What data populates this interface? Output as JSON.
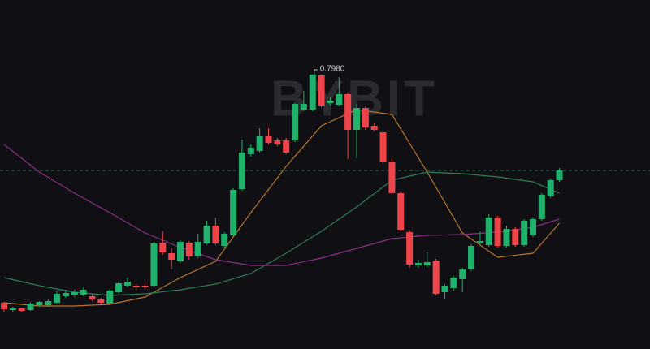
{
  "chart_data": {
    "type": "candlestick",
    "watermark": "BYBIT",
    "annotation": {
      "value": 0.798,
      "label": "0.7980"
    },
    "up_color": "#20b26c",
    "down_color": "#ef454a",
    "open": [
      0.7699,
      0.769,
      0.7692,
      0.769,
      0.7696,
      0.7696,
      0.7699,
      0.7707,
      0.7708,
      0.7709,
      0.7707,
      0.7703,
      0.7698,
      0.7712,
      0.772,
      0.772,
      0.772,
      0.772,
      0.7773,
      0.776,
      0.775,
      0.7773,
      0.7756,
      0.7772,
      0.7794,
      0.7769,
      0.7782,
      0.7839,
      0.7882,
      0.7886,
      0.7904,
      0.7899,
      0.7899,
      0.7899,
      0.7937,
      0.7937,
      0.7979,
      0.7945,
      0.7943,
      0.7956,
      0.7912,
      0.7939,
      0.7917,
      0.7909,
      0.7872,
      0.7834,
      0.7786,
      0.7745,
      0.7745,
      0.7751,
      0.7712,
      0.7717,
      0.7728,
      0.774,
      0.7772,
      0.777,
      0.7804,
      0.7769,
      0.779,
      0.777,
      0.7782,
      0.7802,
      0.783,
      0.785
    ],
    "high": [
      0.77,
      0.7694,
      0.7693,
      0.77,
      0.7701,
      0.7703,
      0.7713,
      0.7715,
      0.7715,
      0.7718,
      0.771,
      0.7705,
      0.7716,
      0.7725,
      0.773,
      0.7722,
      0.7723,
      0.7774,
      0.7787,
      0.7766,
      0.7776,
      0.7775,
      0.7784,
      0.78,
      0.7804,
      0.7786,
      0.784,
      0.79,
      0.7894,
      0.7914,
      0.7914,
      0.7902,
      0.7902,
      0.7946,
      0.796,
      0.798,
      0.798,
      0.7952,
      0.7977,
      0.7958,
      0.7944,
      0.7942,
      0.792,
      0.7912,
      0.7877,
      0.7836,
      0.7788,
      0.7752,
      0.7761,
      0.7753,
      0.7722,
      0.7732,
      0.7742,
      0.7771,
      0.7787,
      0.7808,
      0.7806,
      0.7794,
      0.7792,
      0.7802,
      0.7804,
      0.7834,
      0.7852,
      0.7865
    ],
    "low": [
      0.7688,
      0.7688,
      0.7688,
      0.7689,
      0.7695,
      0.7694,
      0.7698,
      0.7705,
      0.7706,
      0.7707,
      0.7701,
      0.7697,
      0.7696,
      0.771,
      0.7718,
      0.7714,
      0.7716,
      0.7718,
      0.7758,
      0.774,
      0.7748,
      0.7752,
      0.7754,
      0.777,
      0.777,
      0.7767,
      0.778,
      0.7837,
      0.7879,
      0.7884,
      0.7894,
      0.7892,
      0.7882,
      0.7897,
      0.7935,
      0.7935,
      0.794,
      0.7942,
      0.7941,
      0.7876,
      0.7877,
      0.7912,
      0.791,
      0.787,
      0.7832,
      0.7787,
      0.7742,
      0.7742,
      0.7742,
      0.7708,
      0.7704,
      0.7714,
      0.7712,
      0.7738,
      0.777,
      0.7768,
      0.7767,
      0.7767,
      0.7768,
      0.7768,
      0.778,
      0.78,
      0.7828,
      0.7848
    ],
    "close": [
      0.7691,
      0.7692,
      0.7689,
      0.7698,
      0.77,
      0.7701,
      0.771,
      0.7711,
      0.7712,
      0.7715,
      0.7703,
      0.7699,
      0.7714,
      0.7723,
      0.7725,
      0.7718,
      0.7718,
      0.7772,
      0.7761,
      0.7752,
      0.7774,
      0.7756,
      0.7774,
      0.7794,
      0.7772,
      0.7784,
      0.7838,
      0.7884,
      0.789,
      0.7904,
      0.7896,
      0.7894,
      0.7884,
      0.7944,
      0.7944,
      0.798,
      0.7942,
      0.7948,
      0.7956,
      0.7912,
      0.7939,
      0.7915,
      0.7912,
      0.7872,
      0.7834,
      0.7789,
      0.7746,
      0.7748,
      0.7749,
      0.771,
      0.772,
      0.773,
      0.774,
      0.7769,
      0.7775,
      0.7804,
      0.7769,
      0.779,
      0.777,
      0.78,
      0.7802,
      0.7832,
      0.785,
      0.7862
    ],
    "series": [
      {
        "color": "#b8762f",
        "x": [
          0,
          4,
          8,
          12,
          16,
          20,
          24,
          28,
          32,
          36,
          40,
          44,
          48,
          52,
          56,
          60,
          63
        ],
        "values": [
          0.7699,
          0.7695,
          0.7695,
          0.7697,
          0.7706,
          0.773,
          0.775,
          0.781,
          0.7867,
          0.7917,
          0.7937,
          0.7931,
          0.786,
          0.7785,
          0.7755,
          0.776,
          0.7797
        ]
      },
      {
        "color": "#2f7d55",
        "x": [
          0,
          4,
          8,
          12,
          16,
          20,
          24,
          28,
          32,
          36,
          40,
          44,
          48,
          52,
          56,
          60,
          63
        ],
        "values": [
          0.773,
          0.772,
          0.7712,
          0.7708,
          0.771,
          0.7715,
          0.7722,
          0.7735,
          0.776,
          0.7787,
          0.7817,
          0.785,
          0.786,
          0.7858,
          0.7854,
          0.7848,
          0.7834
        ]
      },
      {
        "color": "#8a2f86",
        "x": [
          0,
          4,
          8,
          12,
          16,
          20,
          24,
          28,
          32,
          36,
          40,
          44,
          48,
          52,
          56,
          60,
          63
        ],
        "values": [
          0.7894,
          0.786,
          0.7834,
          0.781,
          0.7785,
          0.7767,
          0.7752,
          0.7745,
          0.7745,
          0.7754,
          0.7766,
          0.7778,
          0.7782,
          0.7783,
          0.7786,
          0.7792,
          0.7802
        ]
      }
    ]
  }
}
